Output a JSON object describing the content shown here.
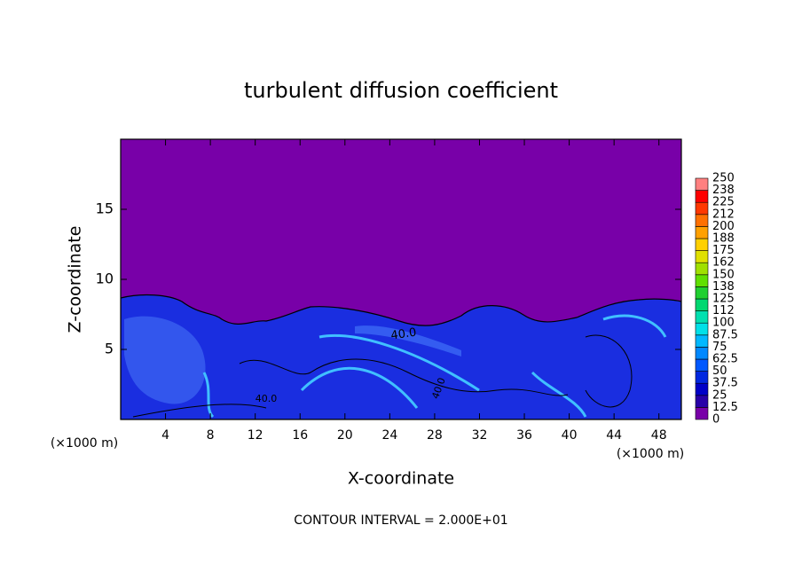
{
  "chart_data": {
    "type": "contour",
    "title": "turbulent diffusion coefficient",
    "x_label": "X-coordinate",
    "y_label": "Z-coordinate",
    "x_unit": "(×1000 m)",
    "y_unit": "(×1000 m)",
    "footer": "CONTOUR INTERVAL = 2.000E+01",
    "contour_labels": [
      "40.0",
      "40.0",
      "40.0"
    ],
    "xlim": [
      0,
      50
    ],
    "xticks": [
      4,
      8,
      12,
      16,
      20,
      24,
      28,
      32,
      36,
      40,
      44,
      48
    ],
    "ylim": [
      0,
      20
    ],
    "yticks": [
      5,
      10,
      15
    ],
    "levels": [
      0,
      12.5,
      25,
      37.5,
      50,
      62.5,
      75,
      87.5,
      100,
      {
        "value": 112.5,
        "label": "112"
      },
      125,
      {
        "value": 137.5,
        "label": "138"
      },
      150,
      {
        "value": 162.5,
        "label": "162"
      },
      175,
      {
        "value": 187.5,
        "label": "188"
      },
      200,
      {
        "value": 212.5,
        "label": "212"
      },
      225,
      {
        "value": 237.5,
        "label": "238"
      },
      250
    ],
    "colors": [
      "#7800a8",
      "#2800a8",
      "#0000c8",
      "#0028e0",
      "#0058ff",
      "#0088ff",
      "#00b8ff",
      "#00e0e8",
      "#00e0b0",
      "#00d870",
      "#20d030",
      "#60e000",
      "#a0e000",
      "#e0e000",
      "#ffd000",
      "#ffa000",
      "#ff7000",
      "#ff3800",
      "#ff0000",
      "#ff8080"
    ]
  }
}
